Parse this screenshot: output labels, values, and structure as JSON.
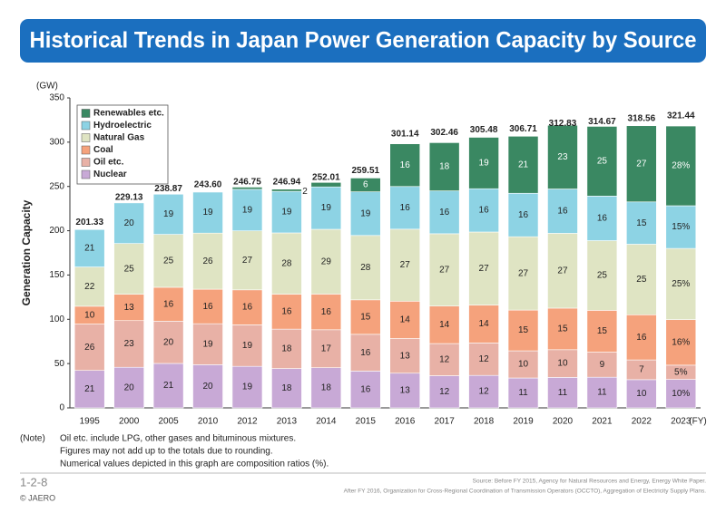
{
  "chart_data": {
    "type": "stacked_bar",
    "title": "Historical Trends in Japan Power Generation Capacity by Source",
    "y_unit": "(GW)",
    "y_label": "Generation Capacity",
    "x_unit": "(FY)",
    "categories": [
      "1995",
      "2000",
      "2005",
      "2010",
      "2012",
      "2013",
      "2014",
      "2015",
      "2016",
      "2017",
      "2018",
      "2019",
      "2020",
      "2021",
      "2022",
      "2023"
    ],
    "ylim": [
      0,
      350
    ],
    "yticks": [
      0,
      50,
      100,
      150,
      200,
      250,
      300,
      350
    ],
    "grid": false,
    "legend": "upper left",
    "totals": {
      "values": [
        201.33,
        229.13,
        238.87,
        243.6,
        246.75,
        246.94,
        252.01,
        259.51,
        301.14,
        302.46,
        305.48,
        306.71,
        312.83,
        314.67,
        318.56,
        321.44
      ],
      "value_labels": [
        "201.33",
        "229.13",
        "238.87",
        "243.60",
        "246.75",
        "246.94",
        "252.01",
        "259.51",
        "301.14",
        "302.46",
        "305.48",
        "306.71",
        "312.83",
        "314.67",
        "318.56",
        "321.44"
      ]
    },
    "series": [
      {
        "name": "Nuclear",
        "color": "#c8a9d6",
        "values": [
          21,
          20,
          21,
          20,
          19,
          18,
          18,
          16,
          13,
          12,
          12,
          11,
          11,
          11,
          10,
          10
        ],
        "value_labels": [
          "21",
          "20",
          "21",
          "20",
          "19",
          "18",
          "18",
          "16",
          "13",
          "12",
          "12",
          "11",
          "11",
          "11",
          "10",
          "10%"
        ]
      },
      {
        "name": "Oil etc.",
        "color": "#e8b1a6",
        "values": [
          26,
          23,
          20,
          19,
          19,
          18,
          17,
          16,
          13,
          12,
          12,
          10,
          10,
          9,
          7,
          5
        ],
        "value_labels": [
          "26",
          "23",
          "20",
          "19",
          "19",
          "18",
          "17",
          "16",
          "13",
          "12",
          "12",
          "10",
          "10",
          "9",
          "7",
          "5%"
        ]
      },
      {
        "name": "Coal",
        "color": "#f5a27c",
        "values": [
          10,
          13,
          16,
          16,
          16,
          16,
          16,
          15,
          14,
          14,
          14,
          15,
          15,
          15,
          16,
          16
        ],
        "value_labels": [
          "10",
          "13",
          "16",
          "16",
          "16",
          "16",
          "16",
          "15",
          "14",
          "14",
          "14",
          "15",
          "15",
          "15",
          "16",
          "16%"
        ]
      },
      {
        "name": "Natural Gas",
        "color": "#dfe4c3",
        "values": [
          22,
          25,
          25,
          26,
          27,
          28,
          29,
          28,
          27,
          27,
          27,
          27,
          27,
          25,
          25,
          25
        ],
        "value_labels": [
          "22",
          "25",
          "25",
          "26",
          "27",
          "28",
          "29",
          "28",
          "27",
          "27",
          "27",
          "27",
          "27",
          "25",
          "25",
          "25%"
        ]
      },
      {
        "name": "Hydroelectric",
        "color": "#8dd3e4",
        "values": [
          21,
          20,
          19,
          19,
          19,
          19,
          19,
          19,
          16,
          16,
          16,
          16,
          16,
          16,
          15,
          15
        ],
        "value_labels": [
          "21",
          "20",
          "19",
          "19",
          "19",
          "19",
          "19",
          "19",
          "16",
          "16",
          "16",
          "16",
          "16",
          "16",
          "15",
          "15%"
        ]
      },
      {
        "name": "Renewables etc.",
        "color": "#3a8862",
        "values": [
          0,
          0,
          0,
          0,
          1,
          1,
          2,
          6,
          16,
          18,
          19,
          21,
          23,
          25,
          27,
          28
        ],
        "value_labels": [
          null,
          null,
          null,
          null,
          null,
          null,
          "2",
          "6",
          "16",
          "18",
          "19",
          "21",
          "23",
          "25",
          "27",
          "28%"
        ]
      }
    ],
    "note_prefix": "(Note)",
    "notes": [
      "Oil etc. include LPG, other gases and bituminous mixtures.",
      "Figures may not add up to the totals due to rounding.",
      "Numerical values depicted in this graph are composition ratios (%)."
    ],
    "source": [
      "Source: Before FY 2015, Agency for Natural Resources and Energy, Energy White Paper.",
      "After FY 2016, Organization for Cross-Regional Coordination of Transmission Operators (OCCTO), Aggregation of Electricity Supply Plans."
    ],
    "figure_id": "1-2-8",
    "copyright": "© JAERO"
  }
}
